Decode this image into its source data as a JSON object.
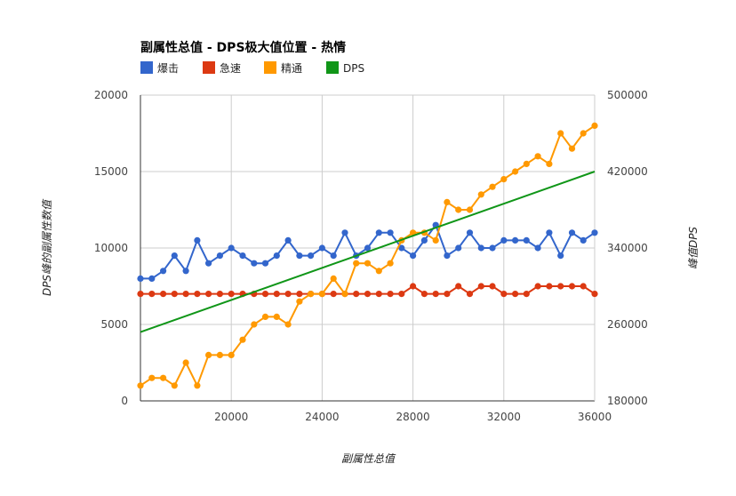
{
  "chart_data": {
    "type": "line",
    "title": "副属性总值 - DPS极大值位置 - 热情",
    "xlabel": "副属性总值",
    "ylabel_left": "DPS峰的副属性数值",
    "ylabel_right": "峰值DPS",
    "xlim": [
      16000,
      36000
    ],
    "ylim_left": [
      0,
      20000
    ],
    "ylim_right": [
      180000,
      500000
    ],
    "x_ticks": [
      "20000",
      "24000",
      "28000",
      "32000",
      "36000"
    ],
    "y_ticks_left": [
      "0",
      "5000",
      "10000",
      "15000",
      "20000"
    ],
    "y_ticks_right": [
      "180000",
      "260000",
      "340000",
      "420000",
      "500000"
    ],
    "grid": true,
    "legend_position": "top-left",
    "x": [
      16000,
      16500,
      17000,
      17500,
      18000,
      18500,
      19000,
      19500,
      20000,
      20500,
      21000,
      21500,
      22000,
      22500,
      23000,
      23500,
      24000,
      24500,
      25000,
      25500,
      26000,
      26500,
      27000,
      27500,
      28000,
      28500,
      29000,
      29500,
      30000,
      30500,
      31000,
      31500,
      32000,
      32500,
      33000,
      33500,
      34000,
      34500,
      35000,
      35500,
      36000
    ],
    "series": [
      {
        "name": "爆击",
        "axis": "left",
        "color": "#3366cc",
        "markers": true,
        "values": [
          8000,
          8000,
          8500,
          9500,
          8500,
          10500,
          9000,
          9500,
          10000,
          9500,
          9000,
          9000,
          9500,
          10500,
          9500,
          9500,
          10000,
          9500,
          11000,
          9500,
          10000,
          11000,
          11000,
          10000,
          9500,
          10500,
          11500,
          9500,
          10000,
          11000,
          10000,
          10000,
          10500,
          10500,
          10500,
          10000,
          11000,
          9500,
          11000,
          10500,
          11000
        ]
      },
      {
        "name": "急速",
        "axis": "left",
        "color": "#dc3912",
        "markers": true,
        "values": [
          7000,
          7000,
          7000,
          7000,
          7000,
          7000,
          7000,
          7000,
          7000,
          7000,
          7000,
          7000,
          7000,
          7000,
          7000,
          7000,
          7000,
          7000,
          7000,
          7000,
          7000,
          7000,
          7000,
          7000,
          7500,
          7000,
          7000,
          7000,
          7500,
          7000,
          7500,
          7500,
          7000,
          7000,
          7000,
          7500,
          7500,
          7500,
          7500,
          7500,
          7000
        ]
      },
      {
        "name": "精通",
        "axis": "left",
        "color": "#ff9900",
        "markers": true,
        "values": [
          1000,
          1500,
          1500,
          1000,
          2500,
          1000,
          3000,
          3000,
          3000,
          4000,
          5000,
          5500,
          5500,
          5000,
          6500,
          7000,
          7000,
          8000,
          7000,
          9000,
          9000,
          8500,
          9000,
          10500,
          11000,
          11000,
          10500,
          13000,
          12500,
          12500,
          13500,
          14000,
          14500,
          15000,
          15500,
          16000,
          15500,
          17500,
          16500,
          17500,
          18000
        ]
      },
      {
        "name": "DPS",
        "axis": "right",
        "color": "#109618",
        "markers": false,
        "x": [
          16000,
          36000
        ],
        "values": [
          252000,
          420000
        ]
      }
    ]
  }
}
